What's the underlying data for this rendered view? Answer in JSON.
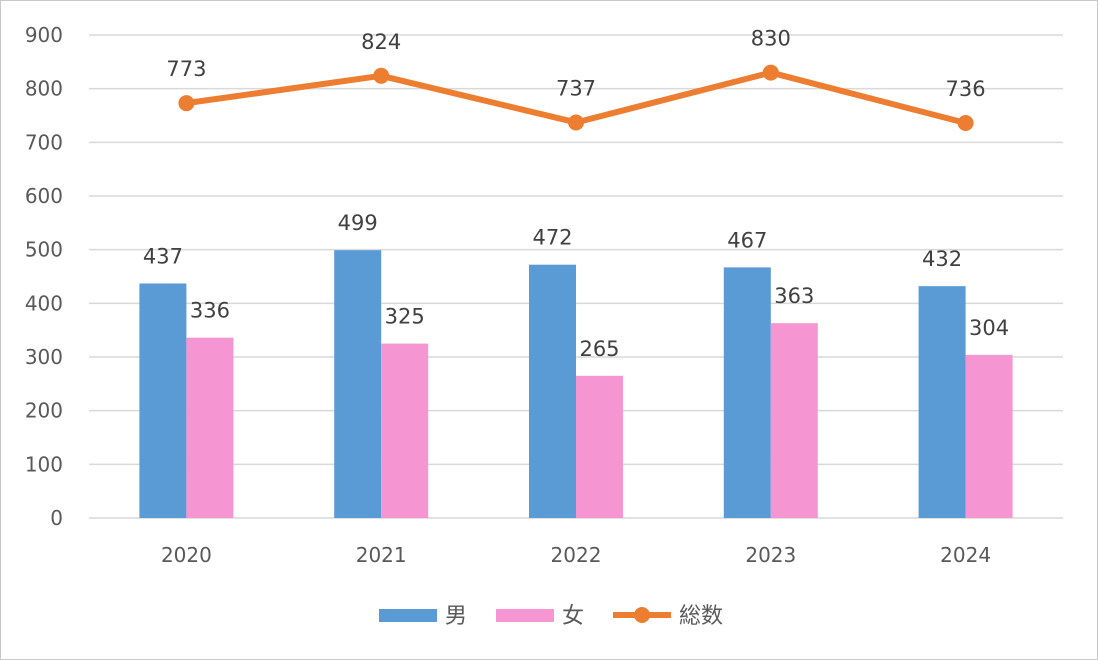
{
  "chart_data": {
    "type": "bar",
    "categories": [
      "2020",
      "2021",
      "2022",
      "2023",
      "2024"
    ],
    "series": [
      {
        "name": "男",
        "type": "bar",
        "values": [
          437,
          499,
          472,
          467,
          432
        ],
        "color": "#5b9bd5"
      },
      {
        "name": "女",
        "type": "bar",
        "values": [
          336,
          325,
          265,
          363,
          304
        ],
        "color": "#f596d2"
      },
      {
        "name": "総数",
        "type": "line",
        "values": [
          773,
          824,
          737,
          830,
          736
        ],
        "color": "#ed7d31"
      }
    ],
    "title": "",
    "xlabel": "",
    "ylabel": "",
    "ylim": [
      0,
      900
    ],
    "yticks": [
      0,
      100,
      200,
      300,
      400,
      500,
      600,
      700,
      800,
      900
    ],
    "grid": true,
    "legend_position": "bottom"
  }
}
